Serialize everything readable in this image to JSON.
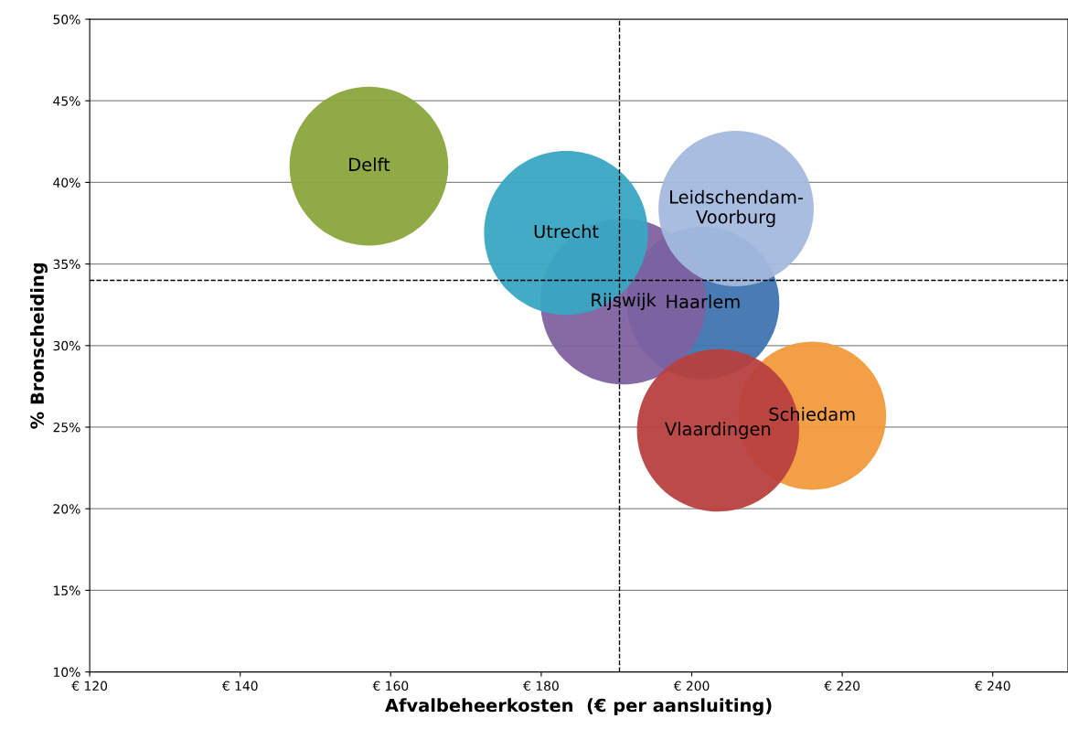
{
  "chart_data": {
    "type": "bubble",
    "xlabel": "Afvalbeheerkosten  (€ per aansluiting)",
    "ylabel": "% Bronscheiding",
    "series": [
      {
        "name": "Delft",
        "color": "#8aa63c",
        "x": [
          157.1
        ],
        "values": [
          41.0
        ],
        "sizes": [
          0.92
        ]
      },
      {
        "name": "Schiedam",
        "color": "#f29a3c",
        "x": [
          216.0
        ],
        "values": [
          25.7
        ],
        "sizes": [
          0.8
        ]
      },
      {
        "name": "Haarlem",
        "color": "#3f75b0",
        "x": [
          201.5
        ],
        "values": [
          32.6
        ],
        "sizes": [
          0.85
        ]
      },
      {
        "name": "Rijswijk",
        "color": "#7e62a0",
        "x": [
          190.9
        ],
        "values": [
          32.7
        ],
        "sizes": [
          1.0
        ]
      },
      {
        "name": "Utrecht",
        "color": "#39a6c2",
        "x": [
          183.3
        ],
        "values": [
          36.9
        ],
        "sizes": [
          0.98
        ]
      },
      {
        "name": "Leidschendam-\nVoorburg",
        "color": "#a3b9de",
        "x": [
          205.9
        ],
        "values": [
          38.4
        ],
        "sizes": [
          0.88
        ]
      },
      {
        "name": "Vlaardingen",
        "color": "#b8403f",
        "x": [
          203.5
        ],
        "values": [
          24.8
        ],
        "sizes": [
          0.96
        ]
      }
    ],
    "xlim": [
      120,
      250
    ],
    "xticks": [
      {
        "value": 120,
        "label": "€ 120"
      },
      {
        "value": 140,
        "label": "€ 140"
      },
      {
        "value": 160,
        "label": "€ 160"
      },
      {
        "value": 180,
        "label": "€ 180"
      },
      {
        "value": 200,
        "label": "€ 200"
      },
      {
        "value": 220,
        "label": "€ 220"
      },
      {
        "value": 240,
        "label": "€ 240"
      }
    ],
    "ylim": [
      10,
      50
    ],
    "yticks": [
      {
        "value": 10,
        "label": "10%"
      },
      {
        "value": 15,
        "label": "15%"
      },
      {
        "value": 20,
        "label": "20%"
      },
      {
        "value": 25,
        "label": "25%"
      },
      {
        "value": 30,
        "label": "30%"
      },
      {
        "value": 35,
        "label": "35%"
      },
      {
        "value": 40,
        "label": "40%"
      },
      {
        "value": 45,
        "label": "45%"
      },
      {
        "value": 50,
        "label": "50%"
      }
    ],
    "grid": "y",
    "legend": false,
    "ref_lines": [
      {
        "axis": "x",
        "value": 190.4,
        "line_style": "dashed",
        "color": "#000000"
      },
      {
        "axis": "y",
        "value": 34.0,
        "line_style": "dashed",
        "color": "#000000"
      }
    ]
  }
}
